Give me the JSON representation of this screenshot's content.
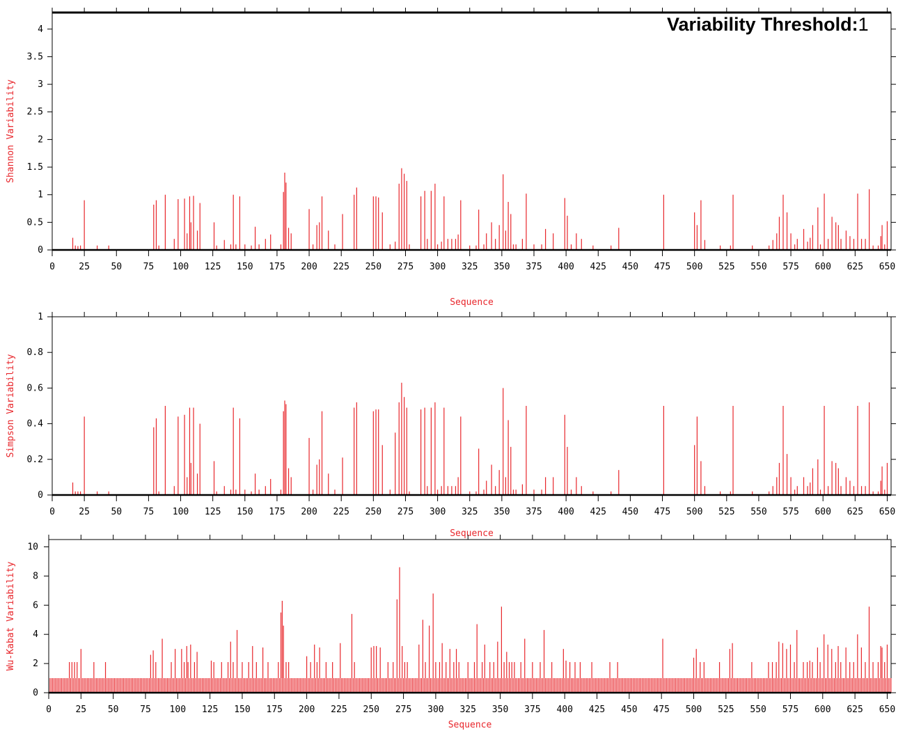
{
  "annotation": {
    "label": "Variability Threshold:",
    "value": "1"
  },
  "colors": {
    "bar": "#e8262b",
    "axis_label": "#e8262b",
    "frame": "#000000"
  },
  "chart_data": [
    {
      "type": "bar",
      "ylabel": "Shannon Variability",
      "xlabel": "Sequence",
      "xlim": [
        0,
        653
      ],
      "ylim": [
        0,
        4.3
      ],
      "xticks": [
        0,
        25,
        50,
        75,
        100,
        125,
        150,
        175,
        200,
        225,
        250,
        275,
        300,
        325,
        350,
        375,
        400,
        425,
        450,
        475,
        500,
        525,
        550,
        575,
        600,
        625,
        650
      ],
      "yticks": [
        0,
        0.5,
        1,
        1.5,
        2,
        2.5,
        3,
        3.5,
        4
      ],
      "yticklabels": [
        "0",
        "0.5",
        "1",
        "1.5",
        "2",
        "2.5",
        "3",
        "3.5",
        "4"
      ],
      "x": [
        16,
        18,
        20,
        22,
        25,
        35,
        44,
        79,
        81,
        83,
        88,
        95,
        98,
        103,
        105,
        107,
        108,
        110,
        113,
        115,
        126,
        128,
        134,
        139,
        141,
        143,
        146,
        150,
        155,
        158,
        161,
        166,
        170,
        178,
        180,
        181,
        182,
        184,
        186,
        200,
        203,
        206,
        208,
        210,
        215,
        220,
        226,
        235,
        237,
        250,
        252,
        254,
        257,
        263,
        267,
        270,
        272,
        274,
        276,
        278,
        287,
        290,
        292,
        295,
        298,
        300,
        303,
        305,
        308,
        311,
        314,
        316,
        318,
        325,
        330,
        332,
        336,
        338,
        342,
        345,
        348,
        351,
        353,
        355,
        357,
        359,
        361,
        366,
        369,
        375,
        381,
        384,
        390,
        399,
        401,
        404,
        408,
        412,
        421,
        435,
        441,
        476,
        500,
        502,
        505,
        508,
        520,
        528,
        530,
        545,
        558,
        561,
        564,
        566,
        569,
        572,
        575,
        578,
        580,
        585,
        588,
        590,
        592,
        596,
        598,
        601,
        604,
        607,
        610,
        612,
        614,
        618,
        621,
        624,
        627,
        630,
        633,
        636,
        639,
        643,
        645,
        646,
        648,
        650
      ],
      "values": [
        0.22,
        0.08,
        0.07,
        0.08,
        0.9,
        0.08,
        0.08,
        0.82,
        0.9,
        0.08,
        1.0,
        0.2,
        0.92,
        0.93,
        0.3,
        0.97,
        0.5,
        0.98,
        0.35,
        0.85,
        0.5,
        0.08,
        0.18,
        0.1,
        1.0,
        0.1,
        0.97,
        0.1,
        0.08,
        0.42,
        0.1,
        0.2,
        0.28,
        0.1,
        1.05,
        1.4,
        1.22,
        0.4,
        0.3,
        0.74,
        0.1,
        0.45,
        0.5,
        0.97,
        0.35,
        0.1,
        0.65,
        1.0,
        1.13,
        0.97,
        0.97,
        0.95,
        0.68,
        0.1,
        0.15,
        1.2,
        1.48,
        1.38,
        1.25,
        0.1,
        0.97,
        1.07,
        0.2,
        1.07,
        1.2,
        0.1,
        0.15,
        0.97,
        0.2,
        0.2,
        0.2,
        0.28,
        0.9,
        0.08,
        0.08,
        0.73,
        0.1,
        0.3,
        0.5,
        0.2,
        0.45,
        1.37,
        0.35,
        0.87,
        0.65,
        0.1,
        0.1,
        0.2,
        1.02,
        0.1,
        0.1,
        0.38,
        0.3,
        0.94,
        0.62,
        0.1,
        0.3,
        0.2,
        0.08,
        0.08,
        0.4,
        1.0,
        0.68,
        0.45,
        0.9,
        0.18,
        0.08,
        0.08,
        1.0,
        0.08,
        0.08,
        0.18,
        0.3,
        0.6,
        1.0,
        0.68,
        0.3,
        0.1,
        0.2,
        0.38,
        0.15,
        0.22,
        0.45,
        0.77,
        0.1,
        1.02,
        0.2,
        0.6,
        0.5,
        0.45,
        0.2,
        0.35,
        0.25,
        0.2,
        1.02,
        0.2,
        0.2,
        1.1,
        0.08,
        0.08,
        0.25,
        0.45,
        0.1,
        0.52
      ],
      "baseline": 0,
      "grid": false,
      "legend": "none"
    },
    {
      "type": "bar",
      "ylabel": "Simpson Variability",
      "xlabel": "Sequence",
      "xlim": [
        0,
        653
      ],
      "ylim": [
        0,
        1
      ],
      "xticks": [
        0,
        25,
        50,
        75,
        100,
        125,
        150,
        175,
        200,
        225,
        250,
        275,
        300,
        325,
        350,
        375,
        400,
        425,
        450,
        475,
        500,
        525,
        550,
        575,
        600,
        625,
        650
      ],
      "yticks": [
        0,
        0.2,
        0.4,
        0.6,
        0.8,
        1
      ],
      "yticklabels": [
        "0",
        "0.2",
        "0.4",
        "0.6",
        "0.8",
        "1"
      ],
      "x": [
        16,
        18,
        20,
        22,
        25,
        35,
        44,
        79,
        81,
        83,
        88,
        95,
        98,
        103,
        105,
        107,
        108,
        110,
        113,
        115,
        126,
        128,
        134,
        139,
        141,
        143,
        146,
        150,
        155,
        158,
        161,
        166,
        170,
        178,
        180,
        181,
        182,
        184,
        186,
        200,
        203,
        206,
        208,
        210,
        215,
        220,
        226,
        235,
        237,
        250,
        252,
        254,
        257,
        263,
        267,
        270,
        272,
        274,
        276,
        278,
        287,
        290,
        292,
        295,
        298,
        300,
        303,
        305,
        308,
        311,
        314,
        316,
        318,
        325,
        330,
        332,
        336,
        338,
        342,
        345,
        348,
        351,
        353,
        355,
        357,
        359,
        361,
        366,
        369,
        375,
        381,
        384,
        390,
        399,
        401,
        404,
        408,
        412,
        421,
        435,
        441,
        476,
        500,
        502,
        505,
        508,
        520,
        528,
        530,
        545,
        558,
        561,
        564,
        566,
        569,
        572,
        575,
        578,
        580,
        585,
        588,
        590,
        592,
        596,
        598,
        601,
        604,
        607,
        610,
        612,
        614,
        618,
        621,
        624,
        627,
        630,
        633,
        636,
        639,
        643,
        645,
        646,
        648,
        650
      ],
      "values": [
        0.07,
        0.02,
        0.02,
        0.02,
        0.44,
        0.02,
        0.02,
        0.38,
        0.43,
        0.02,
        0.5,
        0.05,
        0.44,
        0.45,
        0.1,
        0.49,
        0.18,
        0.49,
        0.12,
        0.4,
        0.19,
        0.02,
        0.05,
        0.03,
        0.49,
        0.03,
        0.43,
        0.03,
        0.02,
        0.12,
        0.03,
        0.05,
        0.09,
        0.03,
        0.47,
        0.53,
        0.51,
        0.15,
        0.1,
        0.32,
        0.03,
        0.17,
        0.2,
        0.47,
        0.12,
        0.03,
        0.21,
        0.49,
        0.52,
        0.47,
        0.48,
        0.48,
        0.28,
        0.03,
        0.35,
        0.52,
        0.63,
        0.55,
        0.49,
        0.02,
        0.48,
        0.49,
        0.05,
        0.49,
        0.52,
        0.03,
        0.05,
        0.49,
        0.05,
        0.05,
        0.05,
        0.1,
        0.44,
        0.02,
        0.02,
        0.26,
        0.03,
        0.08,
        0.17,
        0.05,
        0.14,
        0.6,
        0.1,
        0.42,
        0.27,
        0.03,
        0.03,
        0.06,
        0.5,
        0.03,
        0.03,
        0.1,
        0.1,
        0.45,
        0.27,
        0.03,
        0.1,
        0.05,
        0.02,
        0.02,
        0.14,
        0.5,
        0.28,
        0.44,
        0.19,
        0.05,
        0.02,
        0.02,
        0.5,
        0.02,
        0.02,
        0.05,
        0.1,
        0.18,
        0.5,
        0.23,
        0.1,
        0.03,
        0.05,
        0.1,
        0.05,
        0.07,
        0.15,
        0.2,
        0.03,
        0.5,
        0.05,
        0.19,
        0.18,
        0.15,
        0.05,
        0.1,
        0.08,
        0.05,
        0.5,
        0.05,
        0.05,
        0.52,
        0.02,
        0.02,
        0.08,
        0.16,
        0.03,
        0.18
      ],
      "baseline": 0,
      "grid": false,
      "legend": "none"
    },
    {
      "type": "bar",
      "ylabel": "Wu-Kabat Variability",
      "xlabel": "Sequence",
      "xlim": [
        0,
        653
      ],
      "ylim": [
        0,
        10.5
      ],
      "xticks": [
        0,
        25,
        50,
        75,
        100,
        125,
        150,
        175,
        200,
        225,
        250,
        275,
        300,
        325,
        350,
        375,
        400,
        425,
        450,
        475,
        500,
        525,
        550,
        575,
        600,
        625,
        650
      ],
      "yticks": [
        0,
        2,
        4,
        6,
        8,
        10
      ],
      "yticklabels": [
        "0",
        "2",
        "4",
        "6",
        "8",
        "10"
      ],
      "x": [
        16,
        18,
        20,
        22,
        25,
        35,
        44,
        79,
        81,
        83,
        88,
        95,
        98,
        103,
        105,
        107,
        108,
        110,
        113,
        115,
        126,
        128,
        134,
        139,
        141,
        143,
        146,
        150,
        155,
        158,
        161,
        166,
        170,
        178,
        180,
        181,
        182,
        184,
        186,
        200,
        203,
        206,
        208,
        210,
        215,
        220,
        226,
        235,
        237,
        250,
        252,
        254,
        257,
        263,
        267,
        270,
        272,
        274,
        276,
        278,
        287,
        290,
        292,
        295,
        298,
        300,
        303,
        305,
        308,
        311,
        314,
        316,
        318,
        325,
        330,
        332,
        336,
        338,
        342,
        345,
        348,
        351,
        353,
        355,
        357,
        359,
        361,
        366,
        369,
        375,
        381,
        384,
        390,
        399,
        401,
        404,
        408,
        412,
        421,
        435,
        441,
        476,
        500,
        502,
        505,
        508,
        520,
        528,
        530,
        545,
        558,
        561,
        564,
        566,
        569,
        572,
        575,
        578,
        580,
        585,
        588,
        590,
        592,
        596,
        598,
        601,
        604,
        607,
        610,
        612,
        614,
        618,
        621,
        624,
        627,
        630,
        633,
        636,
        639,
        643,
        645,
        646,
        648,
        650
      ],
      "values": [
        2.1,
        2.1,
        2.1,
        2.1,
        3.0,
        2.1,
        2.1,
        2.6,
        2.9,
        2.1,
        3.7,
        2.1,
        3.0,
        3.0,
        2.1,
        3.2,
        2.1,
        3.3,
        2.1,
        2.8,
        2.2,
        2.1,
        2.1,
        2.1,
        3.5,
        2.1,
        4.3,
        2.1,
        2.1,
        3.2,
        2.1,
        3.1,
        2.1,
        2.1,
        5.5,
        6.3,
        4.6,
        2.1,
        2.1,
        2.5,
        2.1,
        3.3,
        2.1,
        3.1,
        2.1,
        2.1,
        3.4,
        5.4,
        2.1,
        3.1,
        3.2,
        3.2,
        3.1,
        2.1,
        2.1,
        6.4,
        8.6,
        3.2,
        2.1,
        2.1,
        3.3,
        5.0,
        2.1,
        4.6,
        6.8,
        2.1,
        2.1,
        3.4,
        2.1,
        3.0,
        2.1,
        3.0,
        2.1,
        2.1,
        2.1,
        4.7,
        2.1,
        3.3,
        2.1,
        2.1,
        3.5,
        5.9,
        2.1,
        2.8,
        2.1,
        2.1,
        2.1,
        2.1,
        3.7,
        2.1,
        2.1,
        4.3,
        2.1,
        3.0,
        2.2,
        2.1,
        2.1,
        2.1,
        2.1,
        2.1,
        2.1,
        3.7,
        2.4,
        3.0,
        2.1,
        2.1,
        2.1,
        3.0,
        3.4,
        2.1,
        2.1,
        2.1,
        2.1,
        3.5,
        3.4,
        3.0,
        3.3,
        2.1,
        4.3,
        2.1,
        2.1,
        2.2,
        2.1,
        3.1,
        2.1,
        4.0,
        3.3,
        3.0,
        2.1,
        3.2,
        2.1,
        3.1,
        2.1,
        2.1,
        4.0,
        3.1,
        2.1,
        5.9,
        2.1,
        2.1,
        3.2,
        3.1,
        2.1,
        3.3
      ],
      "baseline": 1,
      "baseline_span": [
        1,
        653
      ],
      "grid": false,
      "legend": "none"
    }
  ]
}
